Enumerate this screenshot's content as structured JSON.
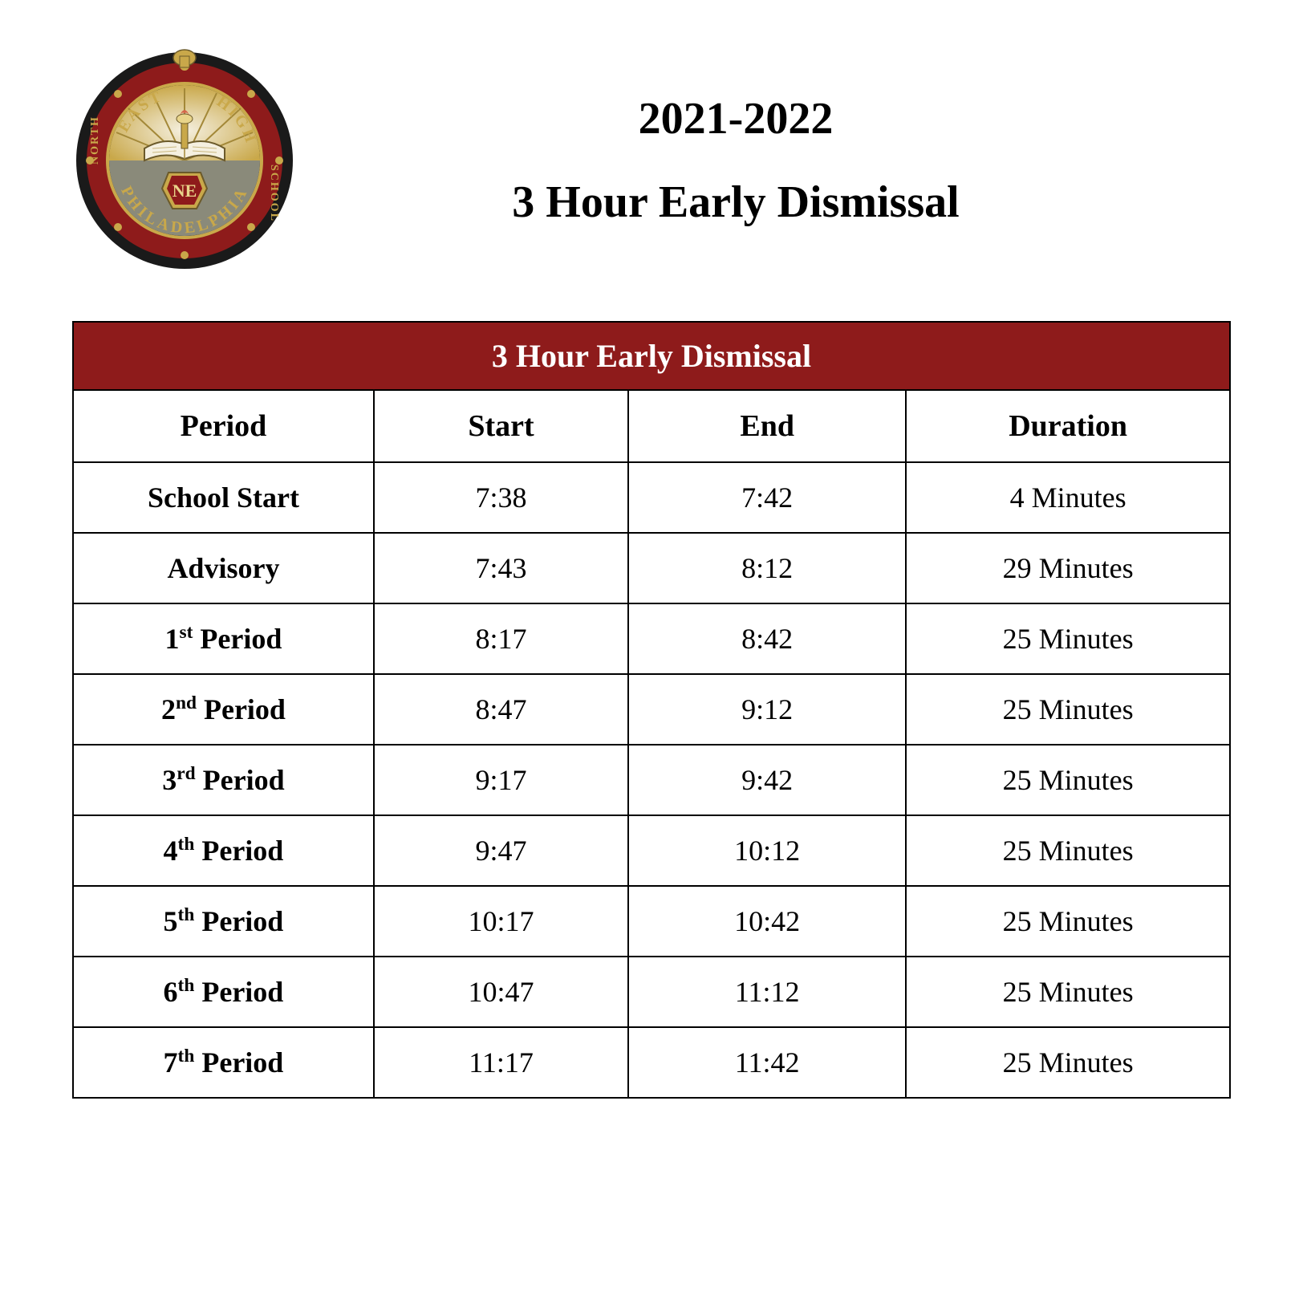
{
  "header": {
    "year": "2021-2022",
    "title": "3 Hour Early Dismissal"
  },
  "logo": {
    "top_text": "EAST",
    "right_text": "HIGH",
    "left_text": "NORTH",
    "bottom_text": "PHILADELPHIA",
    "shield_text": "NE",
    "colors": {
      "outer_ring": "#1a1a1a",
      "inner_ring": "#8e1b1b",
      "gold": "#c9a84a",
      "gold_light": "#e8d48a",
      "white": "#f5f0e0",
      "gray": "#8a8a7a"
    }
  },
  "table": {
    "title": "3 Hour Early Dismissal",
    "title_bg": "#8e1b1b",
    "title_color": "#ffffff",
    "border_color": "#000000",
    "columns": [
      "Period",
      "Start",
      "End",
      "Duration"
    ],
    "rows": [
      {
        "period": "School Start",
        "ordinal": "",
        "start": "7:38",
        "end": "7:42",
        "duration": "4 Minutes"
      },
      {
        "period": "Advisory",
        "ordinal": "",
        "start": "7:43",
        "end": "8:12",
        "duration": "29 Minutes"
      },
      {
        "period": "1",
        "ordinal": "st",
        "period_suffix": " Period",
        "start": "8:17",
        "end": "8:42",
        "duration": "25 Minutes"
      },
      {
        "period": "2",
        "ordinal": "nd",
        "period_suffix": " Period",
        "start": "8:47",
        "end": "9:12",
        "duration": "25 Minutes"
      },
      {
        "period": "3",
        "ordinal": "rd",
        "period_suffix": " Period",
        "start": "9:17",
        "end": "9:42",
        "duration": "25 Minutes"
      },
      {
        "period": "4",
        "ordinal": "th",
        "period_suffix": " Period",
        "start": "9:47",
        "end": "10:12",
        "duration": "25 Minutes"
      },
      {
        "period": "5",
        "ordinal": "th",
        "period_suffix": " Period",
        "start": "10:17",
        "end": "10:42",
        "duration": "25 Minutes"
      },
      {
        "period": "6",
        "ordinal": "th",
        "period_suffix": " Period",
        "start": "10:47",
        "end": "11:12",
        "duration": "25 Minutes"
      },
      {
        "period": "7",
        "ordinal": "th",
        "period_suffix": " Period",
        "start": "11:17",
        "end": "11:42",
        "duration": "25 Minutes"
      }
    ]
  }
}
